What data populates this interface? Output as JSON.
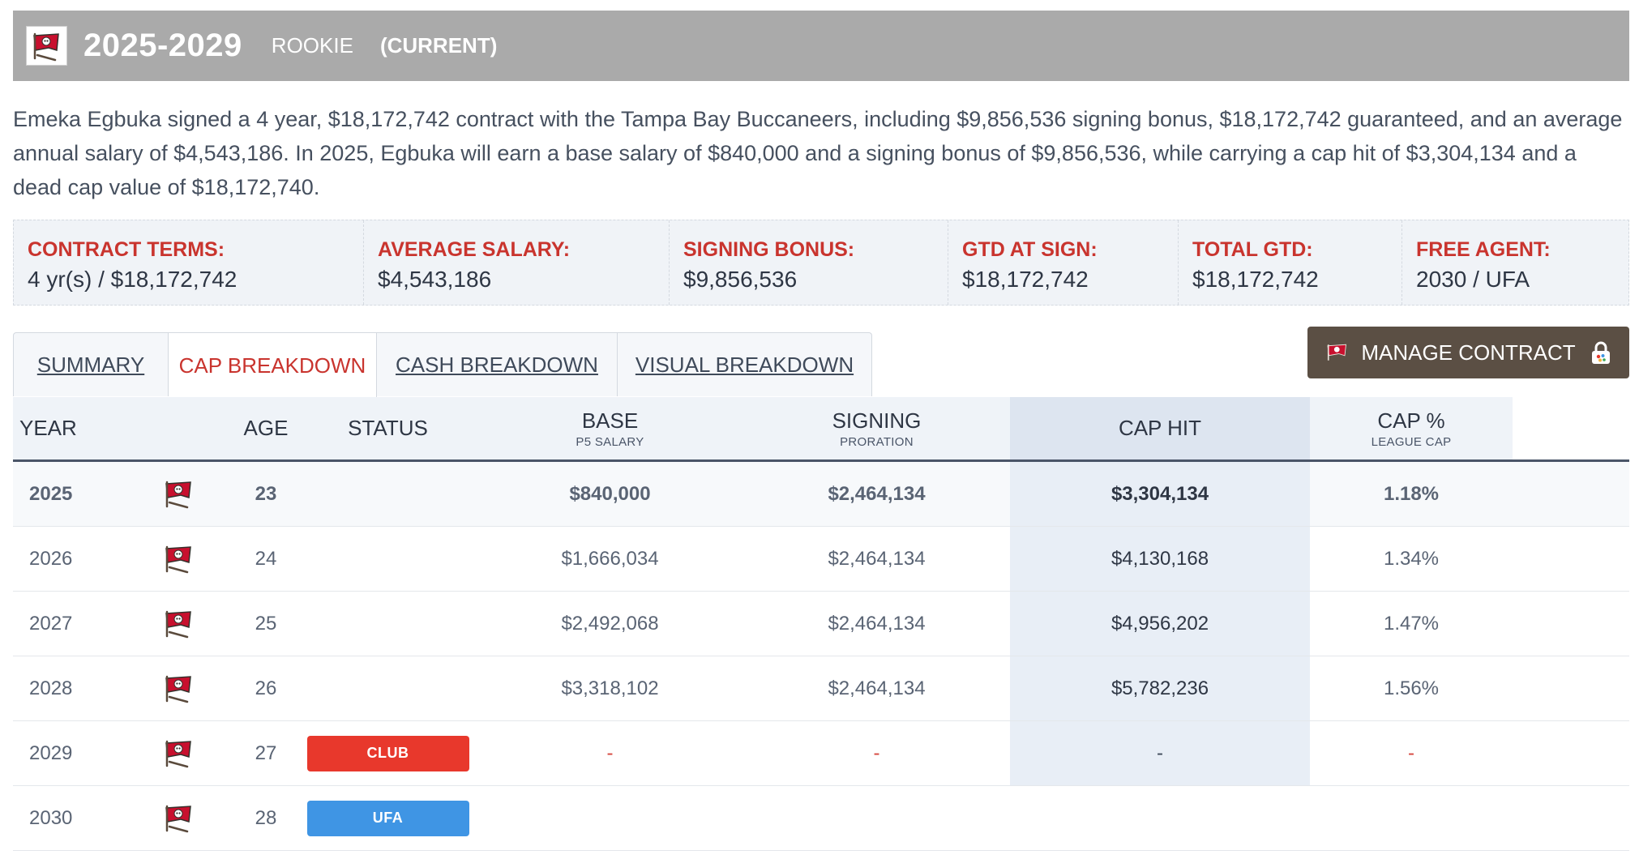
{
  "header": {
    "years": "2025-2029",
    "contract_type": "ROOKIE",
    "status": "(CURRENT)"
  },
  "description": "Emeka Egbuka signed a 4 year, $18,172,742 contract with the Tampa Bay Buccaneers, including $9,856,536 signing bonus, $18,172,742 guaranteed, and an average annual salary of $4,543,186. In 2025, Egbuka will earn a base salary of $840,000 and a signing bonus of $9,856,536, while carrying a cap hit of $3,304,134 and a dead cap value of $18,172,740.",
  "terms": [
    {
      "label": "CONTRACT TERMS:",
      "value": "4 yr(s) / $18,172,742"
    },
    {
      "label": "AVERAGE SALARY:",
      "value": "$4,543,186"
    },
    {
      "label": "SIGNING BONUS:",
      "value": "$9,856,536"
    },
    {
      "label": "GTD AT SIGN:",
      "value": "$18,172,742"
    },
    {
      "label": "TOTAL GTD:",
      "value": "$18,172,742"
    },
    {
      "label": "FREE AGENT:",
      "value": "2030 / UFA"
    }
  ],
  "tabs": [
    {
      "label": "SUMMARY"
    },
    {
      "label": "CAP BREAKDOWN"
    },
    {
      "label": "CASH BREAKDOWN"
    },
    {
      "label": "VISUAL BREAKDOWN"
    }
  ],
  "manage_button": {
    "label": "MANAGE CONTRACT",
    "icon": "lock-icon"
  },
  "table": {
    "headers": {
      "year": "YEAR",
      "age": "AGE",
      "status": "STATUS",
      "base": "BASE",
      "base_sub": "P5 SALARY",
      "signing": "SIGNING",
      "signing_sub": "PRORATION",
      "cap_hit": "CAP HIT",
      "cap_pct": "CAP %",
      "cap_pct_sub": "LEAGUE CAP"
    },
    "rows": [
      {
        "year": "2025",
        "age": "23",
        "status": "",
        "base": "$840,000",
        "signing": "$2,464,134",
        "cap_hit": "$3,304,134",
        "cap_pct": "1.18%"
      },
      {
        "year": "2026",
        "age": "24",
        "status": "",
        "base": "$1,666,034",
        "signing": "$2,464,134",
        "cap_hit": "$4,130,168",
        "cap_pct": "1.34%"
      },
      {
        "year": "2027",
        "age": "25",
        "status": "",
        "base": "$2,492,068",
        "signing": "$2,464,134",
        "cap_hit": "$4,956,202",
        "cap_pct": "1.47%"
      },
      {
        "year": "2028",
        "age": "26",
        "status": "",
        "base": "$3,318,102",
        "signing": "$2,464,134",
        "cap_hit": "$5,782,236",
        "cap_pct": "1.56%"
      },
      {
        "year": "2029",
        "age": "27",
        "status": "CLUB",
        "base": "-",
        "signing": "-",
        "cap_hit": "-",
        "cap_pct": "-"
      },
      {
        "year": "2030",
        "age": "28",
        "status": "UFA",
        "base": "",
        "signing": "",
        "cap_hit": "",
        "cap_pct": ""
      }
    ]
  },
  "colors": {
    "header_bg": "#aaaaaa",
    "accent_red": "#c9342e",
    "manage_button_bg": "#5b4f44",
    "club_badge": "#e8382c",
    "ufa_badge": "#3f95e4"
  }
}
